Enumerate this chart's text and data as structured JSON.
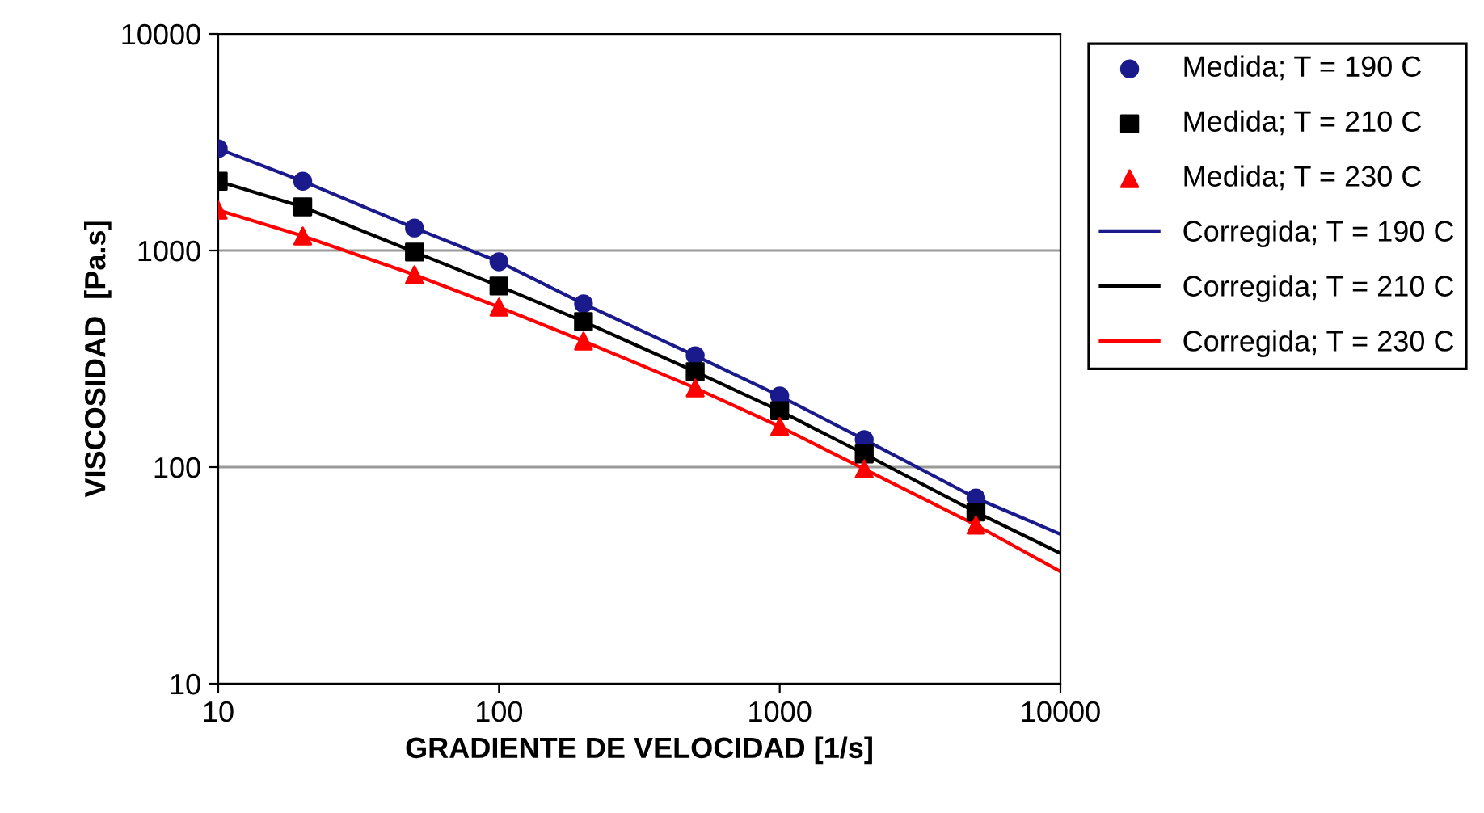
{
  "chart_data": {
    "type": "line",
    "xlabel": "GRADIENTE DE VELOCIDAD [1/s]",
    "ylabel": "VISCOSIDAD  [Pa.s]",
    "log": "xy",
    "grid": "y",
    "legend": "top right",
    "xlim": [
      10,
      10000
    ],
    "xticks": [
      10,
      100,
      1000,
      10000
    ],
    "ylim": [
      10,
      10000
    ],
    "yticks": [
      10,
      100,
      1000,
      10000
    ],
    "series": [
      {
        "name": "Medida; T = 190 C",
        "type": "scatter",
        "marker": "circle",
        "color": "#1a1a8c",
        "x": [
          10,
          20,
          50,
          100,
          200,
          500,
          1000,
          2000,
          5000
        ],
        "values": [
          2950,
          2090,
          1270,
          887,
          568,
          327,
          213,
          134,
          72
        ]
      },
      {
        "name": "Medida; T = 210 C",
        "type": "scatter",
        "marker": "square",
        "color": "#000000",
        "x": [
          10,
          20,
          50,
          100,
          200,
          500,
          1000,
          2000,
          5000
        ],
        "values": [
          2090,
          1590,
          984,
          686,
          470,
          276,
          182,
          115,
          62
        ]
      },
      {
        "name": "Medida; T = 230 C",
        "type": "scatter",
        "marker": "triangle",
        "color": "#ff0000",
        "x": [
          10,
          20,
          50,
          100,
          200,
          500,
          1000,
          2000,
          5000
        ],
        "values": [
          1537,
          1167,
          773,
          548,
          382,
          232,
          154,
          98,
          54
        ]
      },
      {
        "name": "Corregida; T = 190 C",
        "line_style": "solid",
        "color": "#1a1a8c",
        "x": [
          10,
          20,
          50,
          100,
          200,
          500,
          1000,
          2000,
          5000,
          10000
        ],
        "values": [
          2950,
          2090,
          1270,
          887,
          568,
          327,
          213,
          134,
          72,
          49
        ]
      },
      {
        "name": "Corregida; T = 210 C",
        "line_style": "solid",
        "color": "#000000",
        "x": [
          10,
          20,
          50,
          100,
          200,
          500,
          1000,
          2000,
          5000,
          10000
        ],
        "values": [
          2090,
          1590,
          984,
          686,
          470,
          276,
          182,
          115,
          62,
          40
        ]
      },
      {
        "name": "Corregida; T = 230 C",
        "line_style": "solid",
        "color": "#ff0000",
        "x": [
          10,
          20,
          50,
          100,
          200,
          500,
          1000,
          2000,
          5000,
          10000
        ],
        "values": [
          1537,
          1167,
          773,
          548,
          382,
          232,
          154,
          98,
          54,
          33
        ]
      }
    ]
  }
}
